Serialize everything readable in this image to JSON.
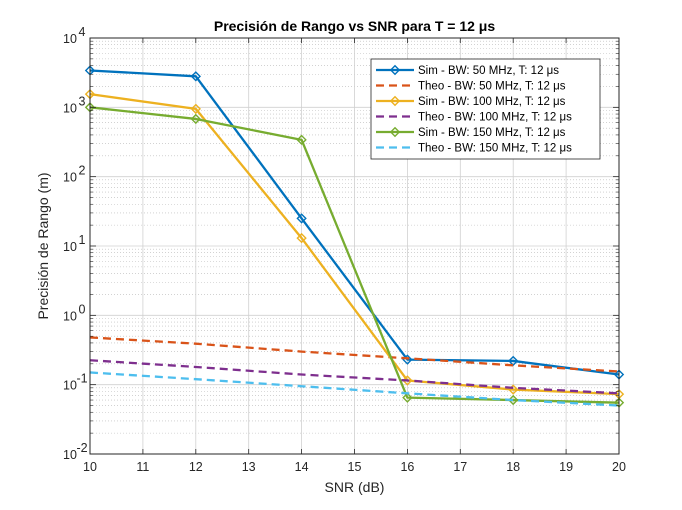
{
  "chart_data": {
    "type": "line",
    "title": "Precisión de Rango vs SNR para T = 12 μs",
    "xlabel": "SNR (dB)",
    "ylabel": "Precisión de Rango (m)",
    "x": [
      10,
      12,
      14,
      16,
      18,
      20
    ],
    "xlim": [
      10,
      20
    ],
    "xticks": [
      "10",
      "11",
      "12",
      "13",
      "14",
      "15",
      "16",
      "17",
      "18",
      "19",
      "20"
    ],
    "ylim": [
      0.01,
      10000
    ],
    "yscale": "log",
    "yticks": [
      {
        "base": "10",
        "exp": "-2"
      },
      {
        "base": "10",
        "exp": "-1"
      },
      {
        "base": "10",
        "exp": "0"
      },
      {
        "base": "10",
        "exp": "1"
      },
      {
        "base": "10",
        "exp": "2"
      },
      {
        "base": "10",
        "exp": "3"
      },
      {
        "base": "10",
        "exp": "4"
      }
    ],
    "grid": true,
    "minor_grid": true,
    "legend_position": "top-right",
    "series": [
      {
        "name": "Sim - BW: 50 MHz, T: 12 μs",
        "style": "solid",
        "marker": "diamond",
        "color": "#0072BD",
        "values": [
          3400,
          2800,
          25,
          0.23,
          0.22,
          0.14
        ]
      },
      {
        "name": "Theo - BW: 50 MHz, T: 12 μs",
        "style": "dashed",
        "marker": "none",
        "color": "#D95319",
        "values": [
          0.48,
          0.39,
          0.3,
          0.24,
          0.19,
          0.155
        ]
      },
      {
        "name": "Sim - BW: 100 MHz, T: 12 μs",
        "style": "solid",
        "marker": "diamond",
        "color": "#EDB120",
        "values": [
          1550,
          950,
          13,
          0.115,
          0.085,
          0.073
        ]
      },
      {
        "name": "Theo - BW: 100 MHz, T: 12 μs",
        "style": "dashed",
        "marker": "none",
        "color": "#7E2F8E",
        "values": [
          0.225,
          0.18,
          0.14,
          0.115,
          0.09,
          0.075
        ]
      },
      {
        "name": "Sim - BW: 150 MHz, T: 12 μs",
        "style": "solid",
        "marker": "diamond",
        "color": "#77AC30",
        "values": [
          1000,
          680,
          340,
          0.065,
          0.06,
          0.055
        ]
      },
      {
        "name": "Theo - BW: 150 MHz, T: 12 μs",
        "style": "dashed",
        "marker": "none",
        "color": "#4DBEEE",
        "values": [
          0.15,
          0.12,
          0.095,
          0.075,
          0.06,
          0.05
        ]
      }
    ]
  }
}
